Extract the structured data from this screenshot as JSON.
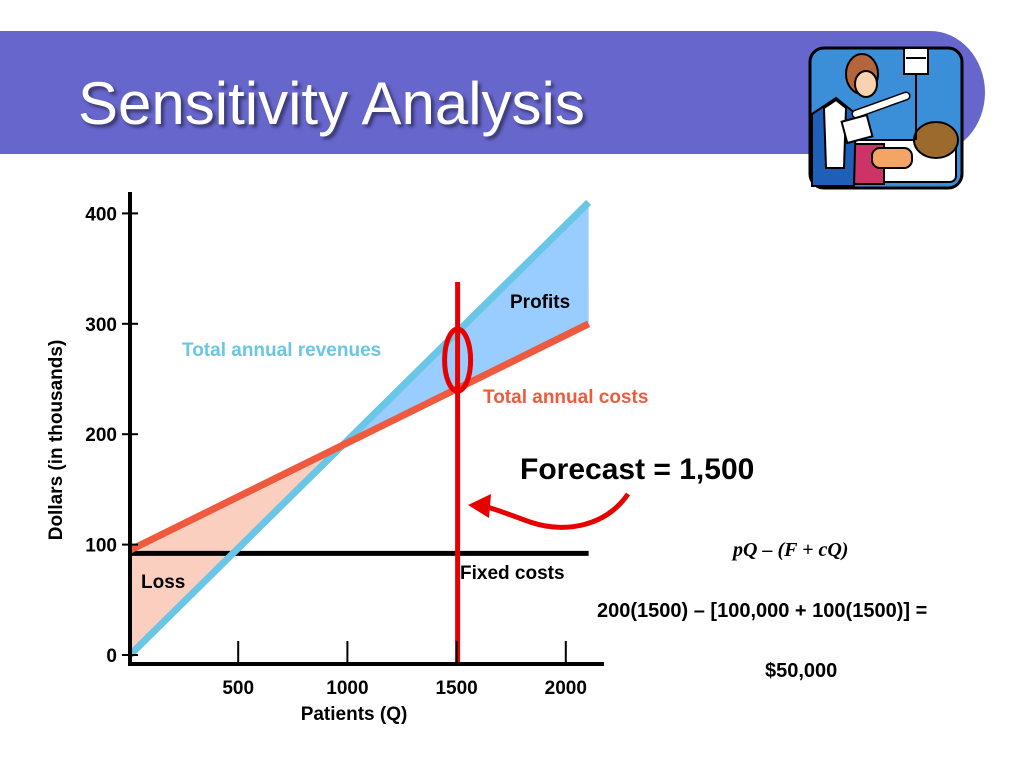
{
  "slide": {
    "title": "Sensitivity Analysis",
    "banner_color": "#6666cc",
    "clipart_icon": "nurse-patient-clipart"
  },
  "chart_data": {
    "type": "line",
    "xlabel": "Patients (Q)",
    "ylabel": "Dollars (in thousands)",
    "xlim": [
      0,
      2100
    ],
    "ylim": [
      0,
      400
    ],
    "x_ticks": [
      500,
      1000,
      1500,
      2000
    ],
    "y_ticks": [
      0,
      100,
      200,
      300,
      400
    ],
    "grid": false,
    "series": [
      {
        "name": "Total annual revenues",
        "color": "#6ac6e6",
        "x": [
          0,
          2100
        ],
        "y": [
          0,
          410
        ]
      },
      {
        "name": "Total annual costs",
        "color": "#ef5a3e",
        "x": [
          0,
          2100
        ],
        "y": [
          95,
          300
        ]
      },
      {
        "name": "Fixed costs",
        "color": "#000000",
        "x": [
          0,
          2100
        ],
        "y": [
          92,
          92
        ]
      }
    ],
    "regions": [
      {
        "label": "Loss",
        "color": "#fbcfc0"
      },
      {
        "label": "Profits",
        "color": "#99ccff"
      }
    ],
    "forecast": {
      "x": 1500,
      "label": "Forecast = 1,500",
      "color": "#e60000"
    }
  },
  "formulas": {
    "line1": "pQ – (F + cQ)",
    "line2": "200(1500) – [100,000 + 100(1500)] =",
    "line3": "$50,000"
  }
}
